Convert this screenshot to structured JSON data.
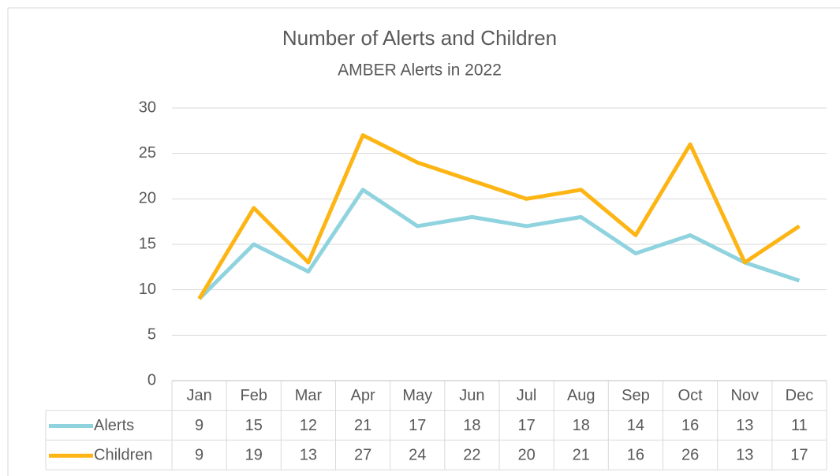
{
  "chart_data": {
    "type": "line",
    "title": "Number of Alerts and Children",
    "subtitle": "AMBER Alerts in 2022",
    "categories": [
      "Jan",
      "Feb",
      "Mar",
      "Apr",
      "May",
      "Jun",
      "Jul",
      "Aug",
      "Sep",
      "Oct",
      "Nov",
      "Dec"
    ],
    "series": [
      {
        "name": "Alerts",
        "color": "#8fd3df",
        "values": [
          9,
          15,
          12,
          21,
          17,
          18,
          17,
          18,
          14,
          16,
          13,
          11
        ]
      },
      {
        "name": "Children",
        "color": "#fdb515",
        "values": [
          9,
          19,
          13,
          27,
          24,
          22,
          20,
          21,
          16,
          26,
          13,
          17
        ]
      }
    ],
    "ylim": [
      0,
      30
    ],
    "yticks": [
      0,
      5,
      10,
      15,
      20,
      25,
      30
    ],
    "grid": true
  }
}
